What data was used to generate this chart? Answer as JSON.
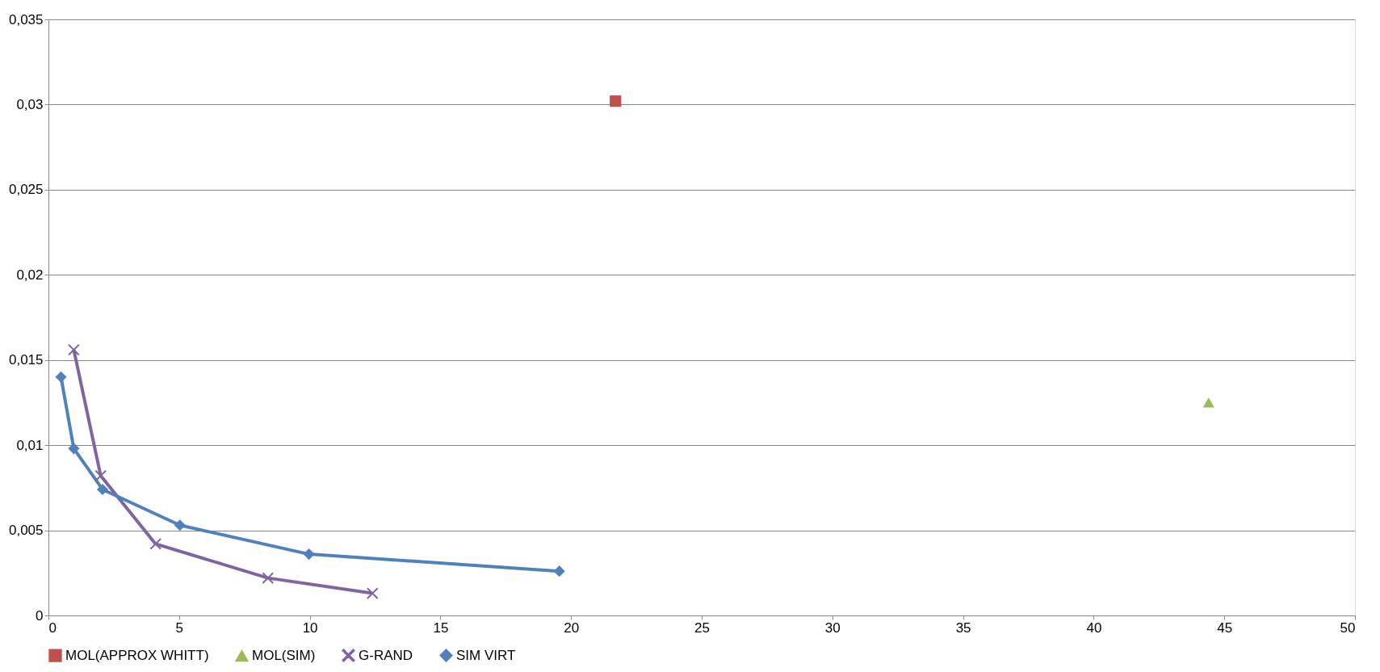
{
  "chart_data": {
    "type": "line",
    "xlim": [
      0,
      50
    ],
    "xticks": [
      0,
      5,
      10,
      15,
      20,
      25,
      30,
      35,
      40,
      45,
      50
    ],
    "ylim": [
      0,
      0.035
    ],
    "yticks": [
      {
        "value": 0,
        "label": "0"
      },
      {
        "value": 0.005,
        "label": "0,005"
      },
      {
        "value": 0.01,
        "label": "0,01"
      },
      {
        "value": 0.015,
        "label": "0,015"
      },
      {
        "value": 0.02,
        "label": "0,02"
      },
      {
        "value": 0.025,
        "label": "0,025"
      },
      {
        "value": 0.03,
        "label": "0,03"
      },
      {
        "value": 0.035,
        "label": "0,035"
      }
    ],
    "grid": "y",
    "legend": "bottom",
    "line_style": "solid",
    "series": [
      {
        "name": "MOL(APPROX WHITT)",
        "type": "scatter",
        "marker": "square",
        "color": "#c0504d",
        "x": [
          21.7
        ],
        "values": [
          0.0302
        ]
      },
      {
        "name": "MOL(SIM)",
        "type": "scatter",
        "marker": "triangle",
        "color": "#9bbb59",
        "x": [
          44.4
        ],
        "values": [
          0.0125
        ]
      },
      {
        "name": "G-RAND",
        "type": "line",
        "marker": "cross",
        "color": "#8064a2",
        "x": [
          0.97,
          2.0,
          4.1,
          8.4,
          12.4
        ],
        "values": [
          0.0156,
          0.0082,
          0.0042,
          0.0022,
          0.0013
        ]
      },
      {
        "name": "SIM VIRT",
        "type": "line",
        "marker": "diamond",
        "color": "#4f81bd",
        "x": [
          0.48,
          0.97,
          2.07,
          5.03,
          9.97,
          19.55
        ],
        "values": [
          0.014,
          0.0098,
          0.0074,
          0.0053,
          0.0036,
          0.0026
        ]
      }
    ]
  }
}
